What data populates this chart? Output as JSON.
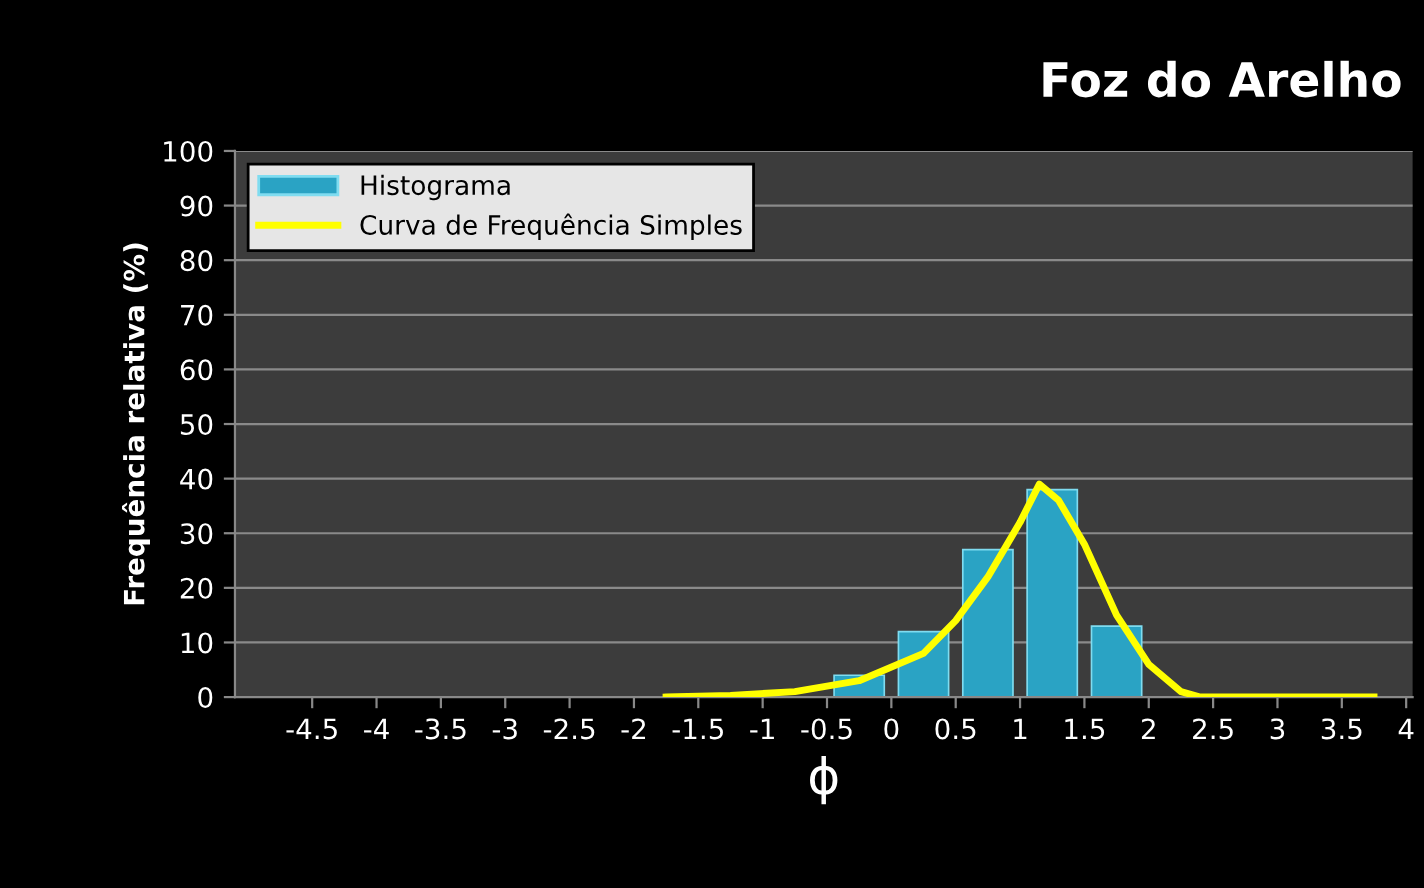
{
  "chart_data": {
    "type": "histogram",
    "title": "Foz do Arelho",
    "xlabel": "ϕ",
    "ylabel": "Frequência relativa (%)",
    "bins": [
      -0.5,
      0,
      0.5,
      1,
      1.5,
      2
    ],
    "series": [
      {
        "name": "Histograma",
        "color": "#2aa3c4",
        "values": [
          4,
          12,
          27,
          38,
          13
        ]
      },
      {
        "name": "Curva de Frequência Simples",
        "type": "line",
        "color": "#ffff00",
        "x": [
          -1.75,
          -1.25,
          -0.75,
          -0.25,
          0.25,
          0.5,
          0.75,
          1.0,
          1.15,
          1.3,
          1.5,
          1.75,
          2.0,
          2.25,
          2.4,
          2.75,
          3.25,
          3.75
        ],
        "values": [
          0,
          0.3,
          1,
          3,
          8,
          14,
          22,
          32,
          39,
          36,
          28,
          15,
          6,
          1,
          0,
          0,
          0,
          0
        ]
      }
    ],
    "xlim": [
      -5.1,
      4.05
    ],
    "xticks": [
      -4.5,
      -4,
      -3.5,
      -3,
      -2.5,
      -2,
      -1.5,
      -1,
      -0.5,
      0,
      0.5,
      1,
      1.5,
      2,
      2.5,
      3,
      3.5,
      4
    ],
    "ylim": [
      0,
      100
    ],
    "yticks": [
      0,
      10,
      20,
      30,
      40,
      50,
      60,
      70,
      80,
      90,
      100
    ],
    "grid": "y",
    "legend": "top left"
  }
}
